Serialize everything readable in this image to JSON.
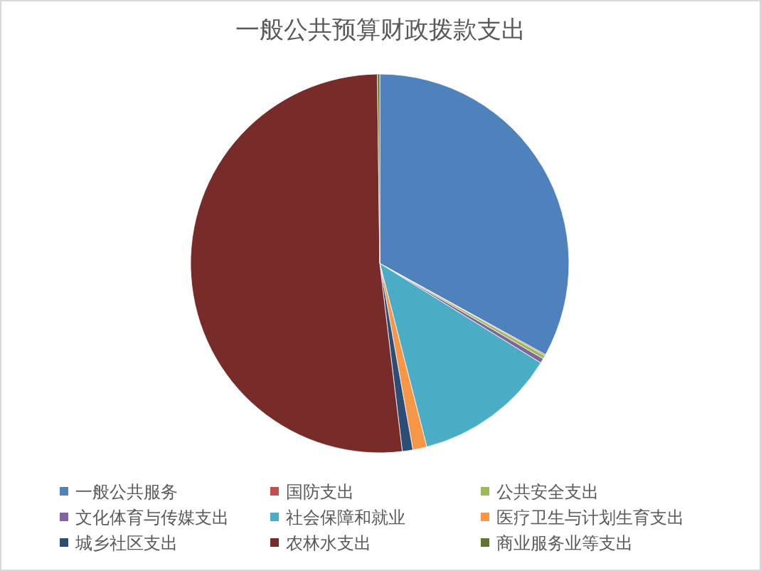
{
  "chart_data": {
    "type": "pie",
    "title": "一般公共预算财政拨款支出",
    "categories": [
      "一般公共服务",
      "国防支出",
      "公共安全支出",
      "文化体育与传媒支出",
      "社会保障和就业",
      "医疗卫生与计划生育支出",
      "城乡社区支出",
      "农林水支出",
      "商业服务业等支出"
    ],
    "values": [
      33.0,
      0.1,
      0.3,
      0.4,
      12.2,
      1.2,
      0.9,
      51.7,
      0.2
    ],
    "colors": [
      "#4f81bd",
      "#c0504d",
      "#9bbb59",
      "#8064a2",
      "#4bacc6",
      "#f79646",
      "#2c4d75",
      "#772c2a",
      "#5f7530"
    ],
    "legend": "bottom"
  }
}
